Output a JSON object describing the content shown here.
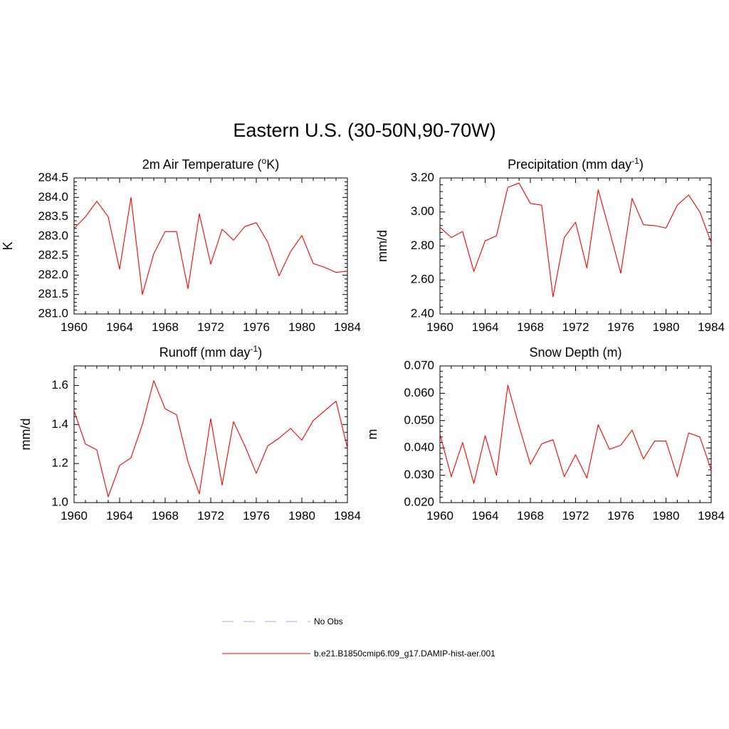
{
  "title": "Eastern U.S. (30-50N,90-70W)",
  "colors": {
    "model_line": "#ff0000",
    "obs_line": "#a6a6ff",
    "axis": "#000000"
  },
  "chart_data": [
    {
      "type": "line",
      "title": "2m Air Temperature (",
      "title_sup": "o",
      "title_tail": "K)",
      "ylabel": "K",
      "xlim": [
        1960,
        1984
      ],
      "ylim": [
        281.0,
        284.5
      ],
      "xticks": [
        1960,
        1964,
        1968,
        1972,
        1976,
        1980,
        1984
      ],
      "yticks": [
        "281.0",
        "281.5",
        "282.0",
        "282.5",
        "283.0",
        "283.5",
        "284.0",
        "284.5"
      ],
      "x": [
        1960,
        1961,
        1962,
        1963,
        1964,
        1965,
        1966,
        1967,
        1968,
        1969,
        1970,
        1971,
        1972,
        1973,
        1974,
        1975,
        1976,
        1977,
        1978,
        1979,
        1980,
        1981,
        1982,
        1983,
        1984
      ],
      "series": [
        {
          "name": "b.e21.B1850cmip6.f09_g17.DAMIP-hist-aer.001",
          "values": [
            283.2,
            283.5,
            283.9,
            283.5,
            282.15,
            284.0,
            281.5,
            282.55,
            283.12,
            283.12,
            281.65,
            283.58,
            282.28,
            283.18,
            282.9,
            283.25,
            283.35,
            282.85,
            281.98,
            282.6,
            283.02,
            282.3,
            282.2,
            282.07,
            282.1
          ]
        }
      ]
    },
    {
      "type": "line",
      "title": "Precipitation (mm day",
      "title_sup": "-1",
      "title_tail": ")",
      "ylabel": "mm/d",
      "xlim": [
        1960,
        1984
      ],
      "ylim": [
        2.4,
        3.2
      ],
      "xticks": [
        1960,
        1964,
        1968,
        1972,
        1976,
        1980,
        1984
      ],
      "yticks": [
        "2.40",
        "2.60",
        "2.80",
        "3.00",
        "3.20"
      ],
      "x": [
        1960,
        1961,
        1962,
        1963,
        1964,
        1965,
        1966,
        1967,
        1968,
        1969,
        1970,
        1971,
        1972,
        1973,
        1974,
        1975,
        1976,
        1977,
        1978,
        1979,
        1980,
        1981,
        1982,
        1983,
        1984
      ],
      "series": [
        {
          "name": "b.e21.B1850cmip6.f09_g17.DAMIP-hist-aer.001",
          "values": [
            2.91,
            2.85,
            2.885,
            2.65,
            2.83,
            2.86,
            3.145,
            3.17,
            3.05,
            3.04,
            2.5,
            2.85,
            2.94,
            2.67,
            3.13,
            2.89,
            2.64,
            3.08,
            2.925,
            2.92,
            2.905,
            3.04,
            3.1,
            3.0,
            2.82
          ]
        }
      ]
    },
    {
      "type": "line",
      "title": "Runoff (mm day",
      "title_sup": "-1",
      "title_tail": ")",
      "ylabel": "mm/d",
      "xlim": [
        1960,
        1984
      ],
      "ylim": [
        1.0,
        1.7
      ],
      "xticks": [
        1960,
        1964,
        1968,
        1972,
        1976,
        1980,
        1984
      ],
      "yticks": [
        "1.0",
        "1.2",
        "1.4",
        "1.6"
      ],
      "x": [
        1960,
        1961,
        1962,
        1963,
        1964,
        1965,
        1966,
        1967,
        1968,
        1969,
        1970,
        1971,
        1972,
        1973,
        1974,
        1975,
        1976,
        1977,
        1978,
        1979,
        1980,
        1981,
        1982,
        1983,
        1984
      ],
      "series": [
        {
          "name": "b.e21.B1850cmip6.f09_g17.DAMIP-hist-aer.001",
          "values": [
            1.47,
            1.3,
            1.27,
            1.03,
            1.19,
            1.23,
            1.4,
            1.625,
            1.48,
            1.45,
            1.21,
            1.045,
            1.43,
            1.09,
            1.415,
            1.29,
            1.15,
            1.29,
            1.33,
            1.38,
            1.32,
            1.42,
            1.47,
            1.52,
            1.28
          ]
        }
      ]
    },
    {
      "type": "line",
      "title": "Snow Depth (m)",
      "title_sup": "",
      "title_tail": "",
      "ylabel": "m",
      "xlim": [
        1960,
        1984
      ],
      "ylim": [
        0.02,
        0.07
      ],
      "xticks": [
        1960,
        1964,
        1968,
        1972,
        1976,
        1980,
        1984
      ],
      "yticks": [
        "0.020",
        "0.030",
        "0.040",
        "0.050",
        "0.060",
        "0.070"
      ],
      "x": [
        1960,
        1961,
        1962,
        1963,
        1964,
        1965,
        1966,
        1967,
        1968,
        1969,
        1970,
        1971,
        1972,
        1973,
        1974,
        1975,
        1976,
        1977,
        1978,
        1979,
        1980,
        1981,
        1982,
        1983,
        1984
      ],
      "series": [
        {
          "name": "b.e21.B1850cmip6.f09_g17.DAMIP-hist-aer.001",
          "values": [
            0.045,
            0.0295,
            0.042,
            0.027,
            0.0445,
            0.03,
            0.063,
            0.048,
            0.034,
            0.0415,
            0.043,
            0.0295,
            0.0375,
            0.029,
            0.0485,
            0.0395,
            0.041,
            0.0465,
            0.036,
            0.0425,
            0.0425,
            0.0295,
            0.0455,
            0.044,
            0.032
          ]
        }
      ]
    }
  ],
  "legend": [
    {
      "label": "No Obs",
      "style": "dashed",
      "color": "#a6a6ff"
    },
    {
      "label": "b.e21.B1850cmip6.f09_g17.DAMIP-hist-aer.001",
      "style": "solid",
      "color": "#ff0000"
    }
  ]
}
